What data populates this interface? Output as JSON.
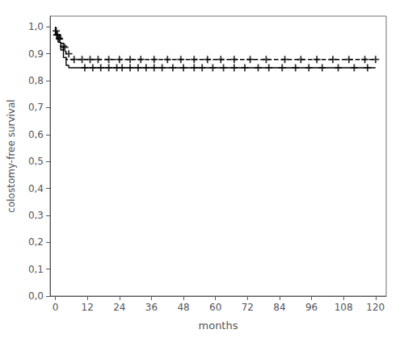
{
  "chart_data": {
    "type": "line",
    "xlabel": "months",
    "ylabel": "colostomy-free survival",
    "xlim": [
      -2,
      124
    ],
    "ylim": [
      0.0,
      1.04
    ],
    "xticks": [
      0,
      12,
      24,
      36,
      48,
      60,
      72,
      84,
      96,
      108,
      120
    ],
    "yticks": [
      {
        "value": 0.0,
        "label": "0,0"
      },
      {
        "value": 0.1,
        "label": "0,1"
      },
      {
        "value": 0.2,
        "label": "0,2"
      },
      {
        "value": 0.3,
        "label": "0,3"
      },
      {
        "value": 0.4,
        "label": "0,4"
      },
      {
        "value": 0.5,
        "label": "0,5"
      },
      {
        "value": 0.6,
        "label": "0,6"
      },
      {
        "value": 0.7,
        "label": "0,7"
      },
      {
        "value": 0.8,
        "label": "0,8"
      },
      {
        "value": 0.9,
        "label": "0,9"
      },
      {
        "value": 1.0,
        "label": "1,0"
      }
    ],
    "grid": false,
    "series": [
      {
        "type": "line",
        "line_style": "solid",
        "color": "#000000",
        "x": [
          0,
          0,
          1,
          1,
          2,
          2,
          3,
          3,
          4,
          4,
          5,
          5,
          6,
          6,
          7,
          7,
          8,
          8,
          9,
          9,
          10,
          10,
          120
        ],
        "values": [
          1.0,
          0.971,
          0.971,
          0.943,
          0.943,
          0.914,
          0.914,
          0.886,
          0.886,
          0.857,
          0.857,
          0.848,
          0.848,
          0.848,
          0.848,
          0.848,
          0.848,
          0.848,
          0.848,
          0.848,
          0.848,
          0.848,
          0.848
        ]
      },
      {
        "type": "line",
        "line_style": "dashed",
        "color": "#000000",
        "x": [
          0,
          0,
          2,
          2,
          3,
          3,
          4,
          4,
          5,
          5,
          7,
          7,
          9,
          9,
          10,
          10,
          120
        ],
        "values": [
          1.0,
          0.97,
          0.97,
          0.939,
          0.939,
          0.909,
          0.909,
          0.879,
          0.879,
          0.879,
          0.879,
          0.879,
          0.879,
          0.879,
          0.879,
          0.879,
          0.879
        ]
      },
      {
        "type": "scatter",
        "marker": "+",
        "color": "#000000",
        "x": [
          0.3,
          0.7,
          1.5,
          3.0,
          5.0
        ],
        "values": [
          0.985,
          0.971,
          0.957,
          0.928,
          0.9
        ]
      },
      {
        "type": "scatter",
        "marker": "+",
        "color": "#000000",
        "x": [
          11,
          14,
          17,
          20,
          23,
          25,
          28,
          31,
          34,
          37,
          40,
          44,
          48,
          52,
          55,
          59,
          63,
          67,
          71,
          76,
          80,
          85,
          90,
          95,
          100,
          106,
          112,
          117
        ],
        "values": [
          0.848,
          0.848,
          0.848,
          0.848,
          0.848,
          0.848,
          0.848,
          0.848,
          0.848,
          0.848,
          0.848,
          0.848,
          0.848,
          0.848,
          0.848,
          0.848,
          0.848,
          0.848,
          0.848,
          0.848,
          0.848,
          0.848,
          0.848,
          0.848,
          0.848,
          0.848,
          0.848,
          0.848
        ]
      },
      {
        "type": "scatter",
        "marker": "+",
        "color": "#000000",
        "x": [
          0.5,
          1.5,
          3.5
        ],
        "values": [
          0.97,
          0.955,
          0.924
        ]
      },
      {
        "type": "scatter",
        "marker": "+",
        "color": "#000000",
        "x": [
          7,
          10,
          13,
          16,
          20,
          24,
          28,
          32,
          37,
          42,
          47,
          52,
          57,
          62,
          67,
          73,
          79,
          86,
          92,
          98,
          104,
          110,
          116,
          120
        ],
        "values": [
          0.879,
          0.879,
          0.879,
          0.879,
          0.879,
          0.879,
          0.879,
          0.879,
          0.879,
          0.879,
          0.879,
          0.879,
          0.879,
          0.879,
          0.879,
          0.879,
          0.879,
          0.879,
          0.879,
          0.879,
          0.879,
          0.879,
          0.879,
          0.879
        ]
      }
    ]
  }
}
